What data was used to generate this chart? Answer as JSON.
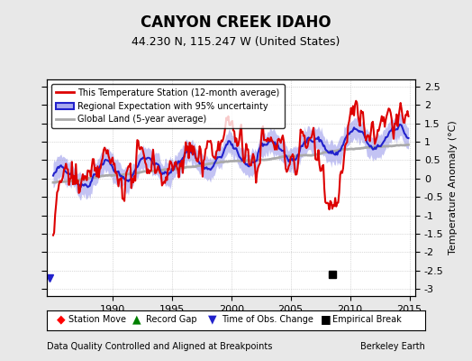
{
  "title": "CANYON CREEK IDAHO",
  "subtitle": "44.230 N, 115.247 W (United States)",
  "ylabel": "Temperature Anomaly (°C)",
  "xlabel_left": "Data Quality Controlled and Aligned at Breakpoints",
  "xlabel_right": "Berkeley Earth",
  "ylim": [
    -3.2,
    2.7
  ],
  "xlim_start": 1984.5,
  "xlim_end": 2015.5,
  "xticks": [
    1990,
    1995,
    2000,
    2005,
    2010,
    2015
  ],
  "yticks": [
    -3,
    -2.5,
    -2,
    -1.5,
    -1,
    -0.5,
    0,
    0.5,
    1,
    1.5,
    2,
    2.5
  ],
  "empirical_break_x": 2008.5,
  "empirical_break_y": -2.6,
  "time_obs_change_x": 1984.7,
  "time_obs_change_y": -2.7,
  "bg_color": "#e8e8e8",
  "plot_bg_color": "#ffffff",
  "red_color": "#dd0000",
  "blue_color": "#2222cc",
  "blue_fill_color": "#aaaaee",
  "gray_color": "#aaaaaa",
  "legend_items": [
    "This Temperature Station (12-month average)",
    "Regional Expectation with 95% uncertainty",
    "Global Land (5-year average)"
  ]
}
